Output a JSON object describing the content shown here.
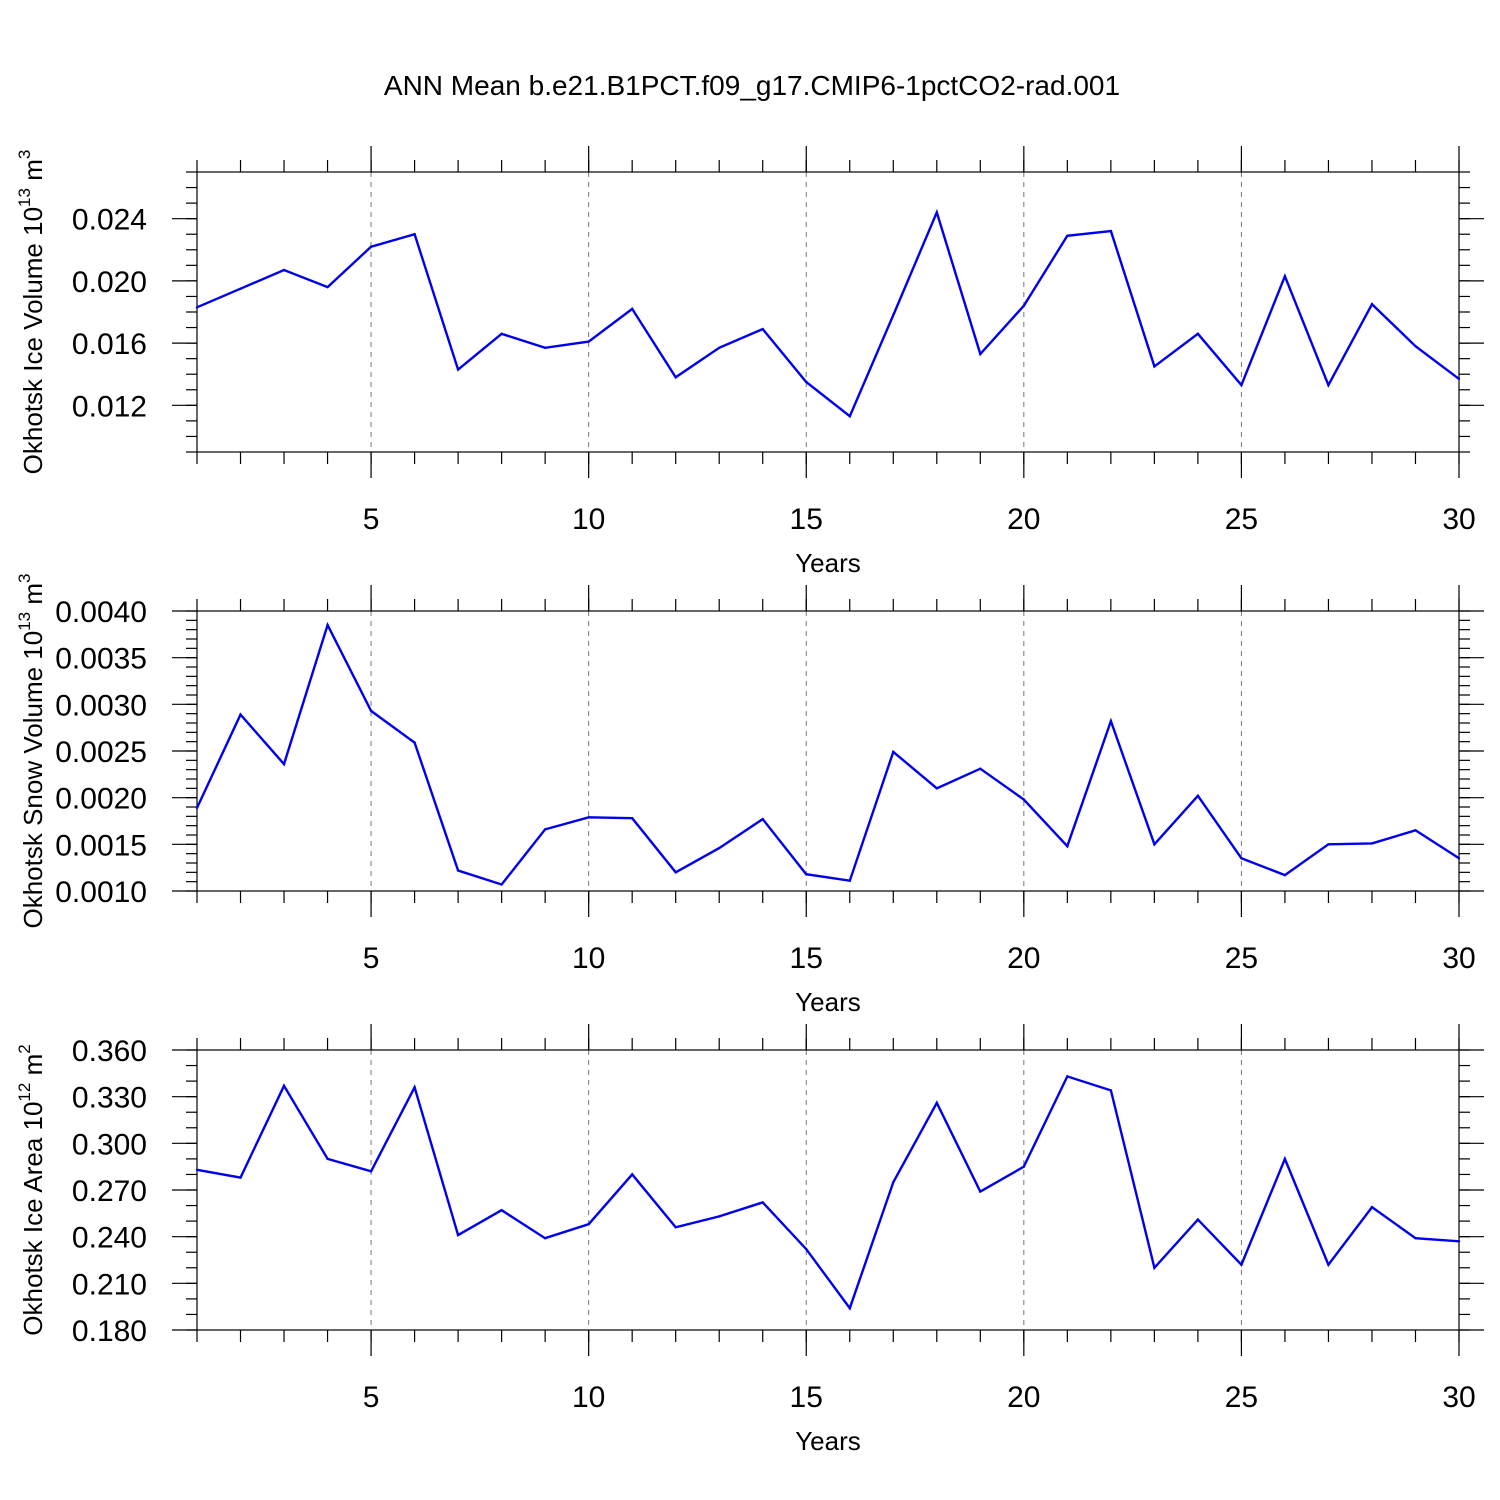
{
  "figure": {
    "title": "ANN Mean b.e21.B1PCT.f09_g17.CMIP6-1pctCO2-rad.001",
    "line_color": "#0000ee"
  },
  "chart_data": [
    {
      "type": "line",
      "ylabel": "Okhotsk Ice Volume 10",
      "ylabel_sup": "13",
      "ylabel_unit": " m",
      "ylabel_unit_sup": "3",
      "xlabel": "Years",
      "xlim": [
        1,
        30
      ],
      "ylim": [
        0.009,
        0.027
      ],
      "x_ticks": [
        5,
        10,
        15,
        20,
        25,
        30
      ],
      "x_tick_labels": [
        "5",
        "10",
        "15",
        "20",
        "25",
        "30"
      ],
      "y_ticks": [
        0.012,
        0.016,
        0.02,
        0.024
      ],
      "y_tick_labels": [
        "0.012",
        "0.016",
        "0.020",
        "0.024"
      ],
      "y_minor_step": 0.001,
      "grid": "vertical dashed at major x ticks",
      "x": [
        1,
        2,
        3,
        4,
        5,
        6,
        7,
        8,
        9,
        10,
        11,
        12,
        13,
        14,
        15,
        16,
        17,
        18,
        19,
        20,
        21,
        22,
        23,
        24,
        25,
        26,
        27,
        28,
        29,
        30
      ],
      "values": [
        0.0183,
        0.0195,
        0.0207,
        0.0196,
        0.0222,
        0.023,
        0.0143,
        0.0166,
        0.0157,
        0.0161,
        0.0182,
        0.0138,
        0.0157,
        0.0169,
        0.0135,
        0.0113,
        0.0178,
        0.0244,
        0.0153,
        0.0184,
        0.0229,
        0.0232,
        0.0145,
        0.0166,
        0.0133,
        0.0203,
        0.0133,
        0.0185,
        0.0158,
        0.0137
      ]
    },
    {
      "type": "line",
      "ylabel": "Okhotsk Snow Volume 10",
      "ylabel_sup": "13",
      "ylabel_unit": " m",
      "ylabel_unit_sup": "3",
      "xlabel": "Years",
      "xlim": [
        1,
        30
      ],
      "ylim": [
        0.001,
        0.004
      ],
      "x_ticks": [
        5,
        10,
        15,
        20,
        25,
        30
      ],
      "x_tick_labels": [
        "5",
        "10",
        "15",
        "20",
        "25",
        "30"
      ],
      "y_ticks": [
        0.001,
        0.0015,
        0.002,
        0.0025,
        0.003,
        0.0035,
        0.004
      ],
      "y_tick_labels": [
        "0.0010",
        "0.0015",
        "0.0020",
        "0.0025",
        "0.0030",
        "0.0035",
        "0.0040"
      ],
      "y_minor_step": 0.0001,
      "grid": "vertical dashed at major x ticks",
      "x": [
        1,
        2,
        3,
        4,
        5,
        6,
        7,
        8,
        9,
        10,
        11,
        12,
        13,
        14,
        15,
        16,
        17,
        18,
        19,
        20,
        21,
        22,
        23,
        24,
        25,
        26,
        27,
        28,
        29,
        30
      ],
      "values": [
        0.00189,
        0.00289,
        0.00236,
        0.00385,
        0.00293,
        0.00259,
        0.00122,
        0.00107,
        0.00166,
        0.00179,
        0.00178,
        0.0012,
        0.00146,
        0.00177,
        0.00118,
        0.00111,
        0.00249,
        0.0021,
        0.00231,
        0.00198,
        0.00148,
        0.00282,
        0.0015,
        0.00202,
        0.00135,
        0.00117,
        0.0015,
        0.00151,
        0.00165,
        0.00135
      ]
    },
    {
      "type": "line",
      "ylabel": "Okhotsk Ice Area 10",
      "ylabel_sup": "12",
      "ylabel_unit": " m",
      "ylabel_unit_sup": "2",
      "xlabel": "Years",
      "xlim": [
        1,
        30
      ],
      "ylim": [
        0.18,
        0.36
      ],
      "x_ticks": [
        5,
        10,
        15,
        20,
        25,
        30
      ],
      "x_tick_labels": [
        "5",
        "10",
        "15",
        "20",
        "25",
        "30"
      ],
      "y_ticks": [
        0.18,
        0.21,
        0.24,
        0.27,
        0.3,
        0.33,
        0.36
      ],
      "y_tick_labels": [
        "0.180",
        "0.210",
        "0.240",
        "0.270",
        "0.300",
        "0.330",
        "0.360"
      ],
      "y_minor_step": 0.01,
      "grid": "vertical dashed at major x ticks",
      "x": [
        1,
        2,
        3,
        4,
        5,
        6,
        7,
        8,
        9,
        10,
        11,
        12,
        13,
        14,
        15,
        16,
        17,
        18,
        19,
        20,
        21,
        22,
        23,
        24,
        25,
        26,
        27,
        28,
        29,
        30
      ],
      "values": [
        0.283,
        0.278,
        0.337,
        0.29,
        0.282,
        0.336,
        0.241,
        0.257,
        0.239,
        0.248,
        0.28,
        0.246,
        0.253,
        0.262,
        0.232,
        0.194,
        0.275,
        0.326,
        0.269,
        0.285,
        0.343,
        0.334,
        0.22,
        0.251,
        0.222,
        0.29,
        0.222,
        0.259,
        0.239,
        0.237
      ]
    }
  ]
}
